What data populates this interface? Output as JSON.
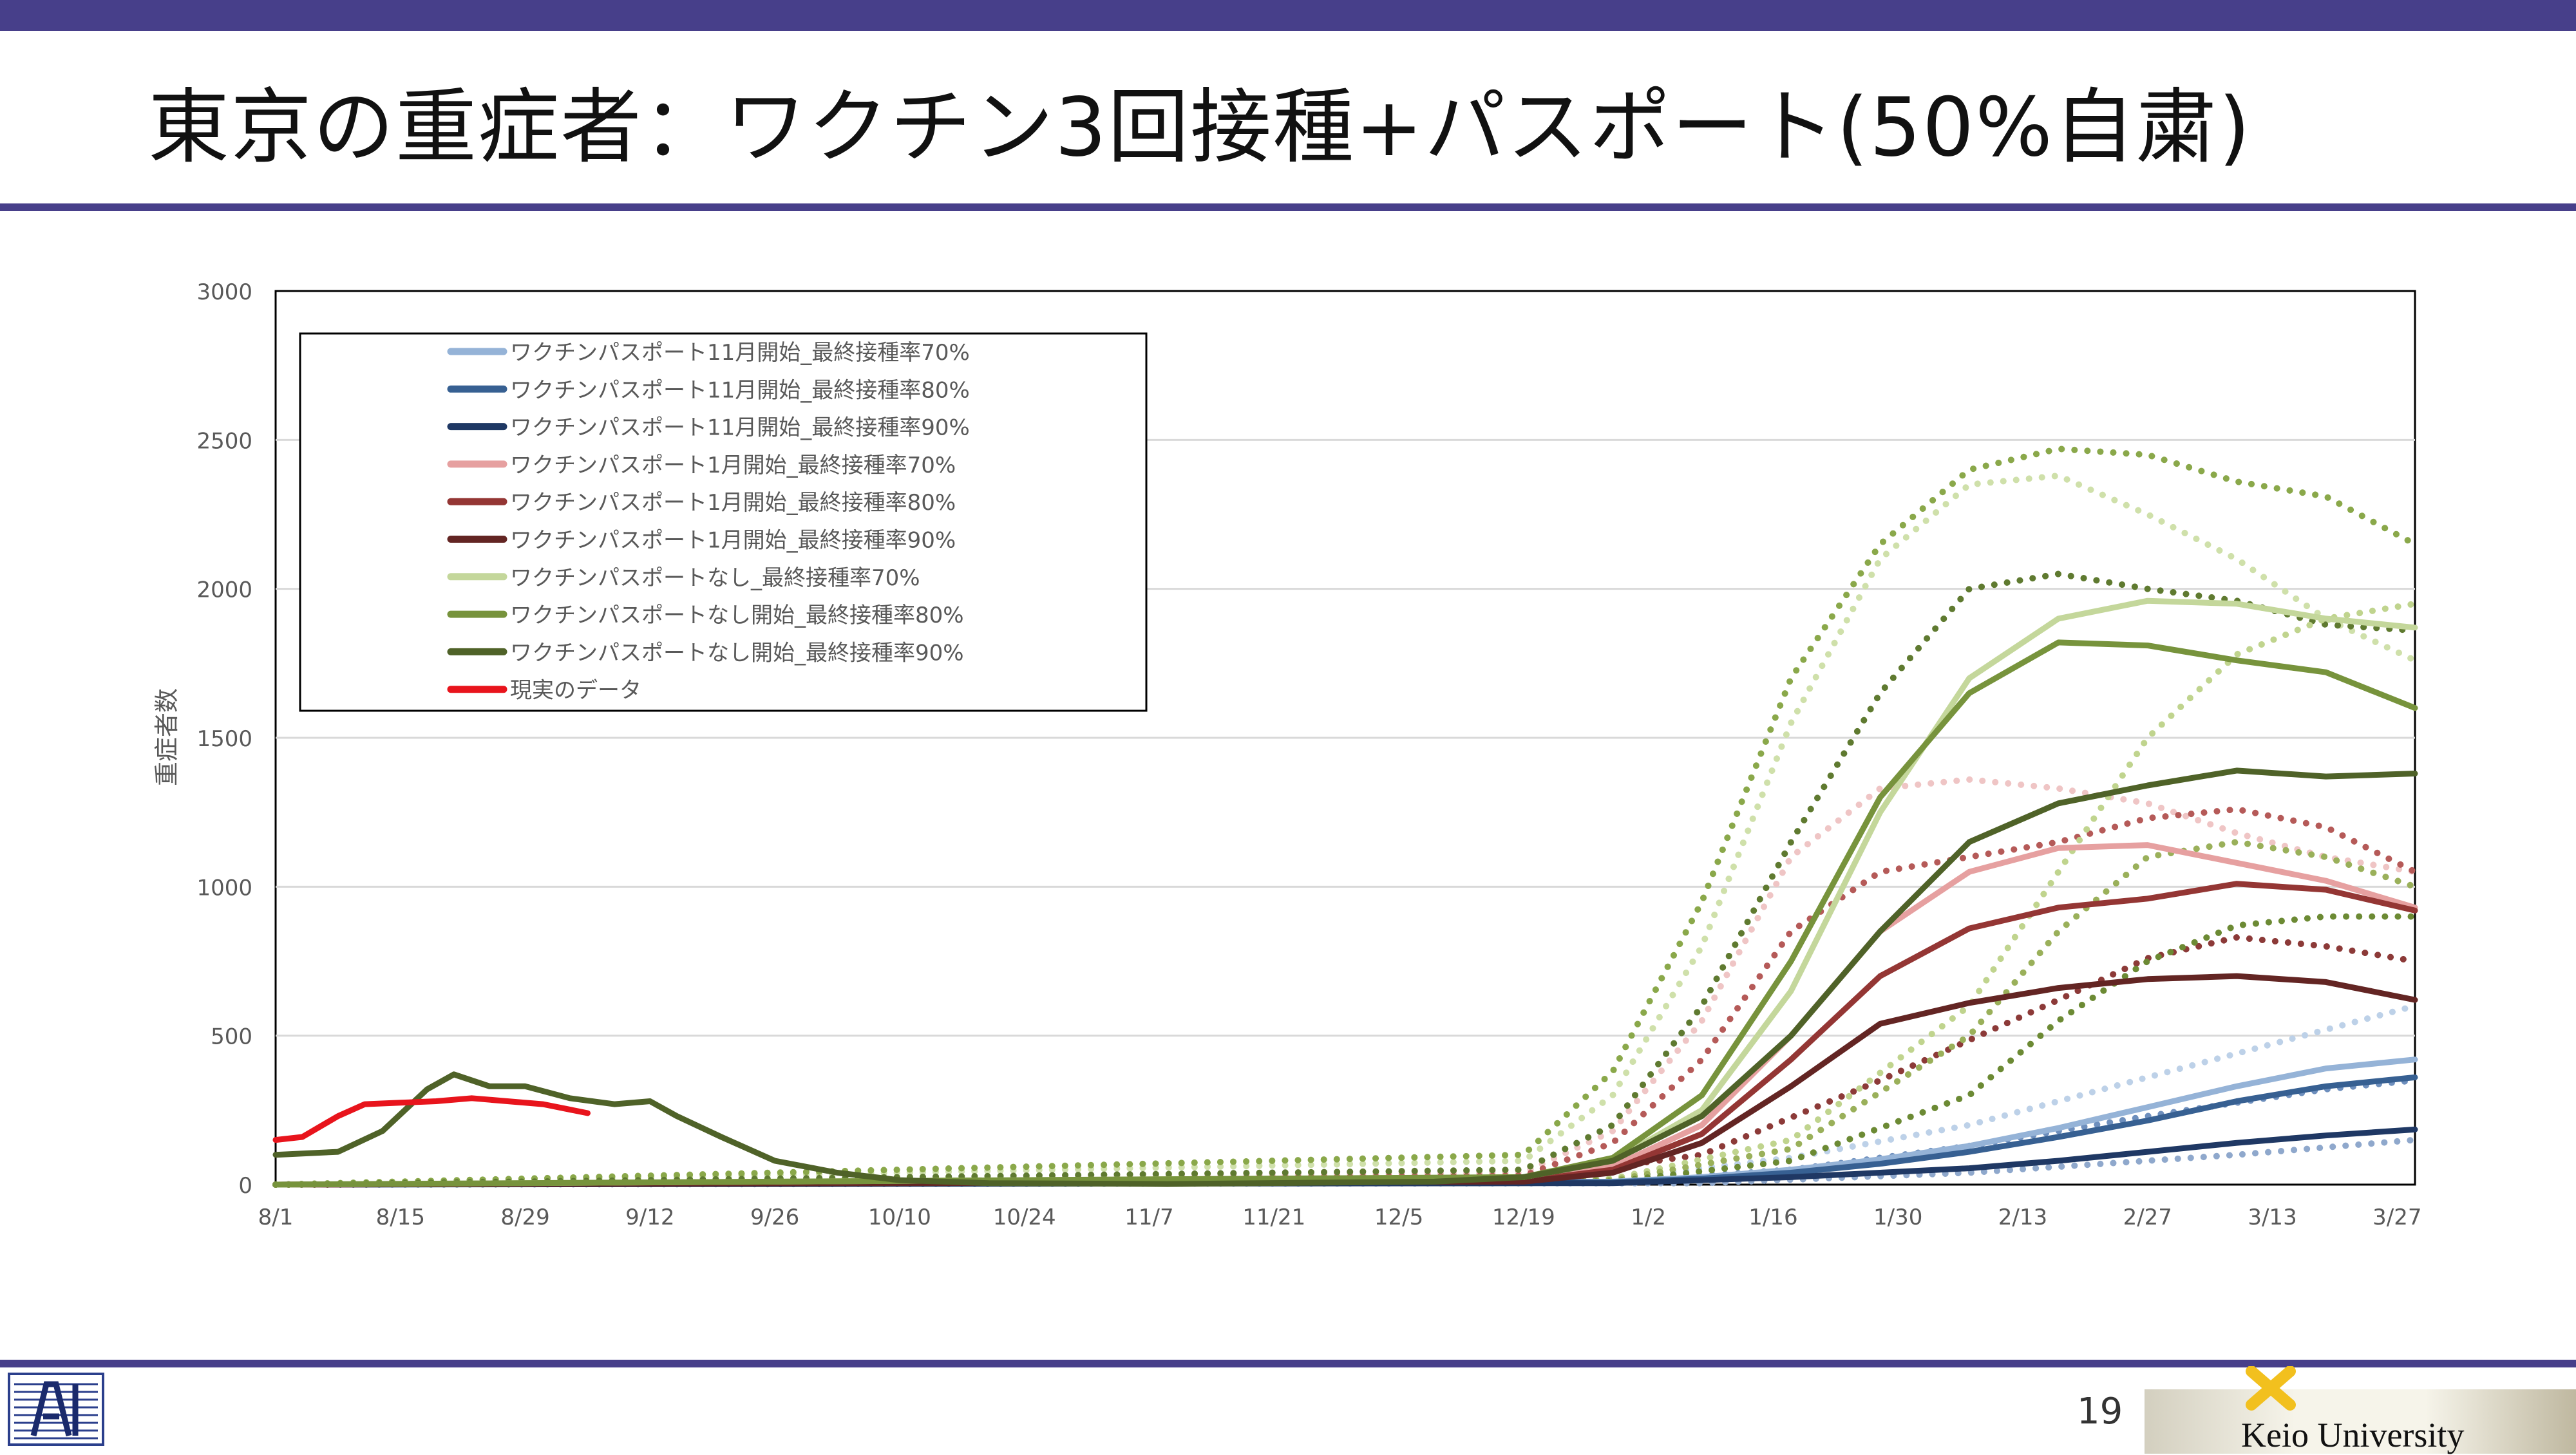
{
  "slide": {
    "title": "東京の重症者：ワクチン3回接種+パスポート(50%自粛)",
    "page_number": "19",
    "university": "Keio University"
  },
  "chart_data": {
    "type": "line",
    "ylabel": "重症者数",
    "ylim": [
      0,
      3000
    ],
    "yticks": [
      0,
      500,
      1000,
      1500,
      2000,
      2500,
      3000
    ],
    "x_ticks": [
      "8/1",
      "8/15",
      "8/29",
      "9/12",
      "9/26",
      "10/10",
      "10/24",
      "11/7",
      "11/21",
      "12/5",
      "12/19",
      "1/2",
      "1/16",
      "1/30",
      "2/13",
      "2/27",
      "3/13",
      "3/27"
    ],
    "x_tick_days": [
      0,
      14,
      28,
      42,
      56,
      70,
      84,
      98,
      112,
      126,
      140,
      154,
      168,
      182,
      196,
      210,
      224,
      238
    ],
    "x_range_days": [
      0,
      240
    ],
    "grid": "horizontal",
    "legend_position": "top-left",
    "series": [
      {
        "name": "ワクチンパスポート11月開始_最終接種率70%",
        "color": "#95b3d7",
        "style": "solid",
        "x": [
          0,
          150,
          160,
          170,
          180,
          190,
          200,
          210,
          220,
          230,
          240
        ],
        "y": [
          0,
          10,
          25,
          50,
          85,
          130,
          190,
          260,
          330,
          390,
          420
        ]
      },
      {
        "name": "ワクチンパスポート11月開始_最終接種率80%",
        "color": "#376092",
        "style": "solid",
        "x": [
          0,
          150,
          160,
          170,
          180,
          190,
          200,
          210,
          220,
          230,
          240
        ],
        "y": [
          0,
          8,
          20,
          40,
          70,
          110,
          160,
          215,
          280,
          330,
          360
        ]
      },
      {
        "name": "ワクチンパスポート11月開始_最終接種率90%",
        "color": "#1f3864",
        "style": "solid",
        "x": [
          0,
          150,
          170,
          190,
          200,
          210,
          220,
          230,
          240
        ],
        "y": [
          0,
          5,
          25,
          55,
          80,
          110,
          140,
          165,
          185
        ]
      },
      {
        "name": "ワクチンパスポート1月開始_最終接種率70%",
        "color": "#e6a0a0",
        "style": "solid",
        "x": [
          0,
          140,
          150,
          160,
          170,
          180,
          190,
          200,
          210,
          220,
          230,
          240
        ],
        "y": [
          0,
          15,
          60,
          200,
          500,
          850,
          1050,
          1130,
          1140,
          1080,
          1020,
          930
        ]
      },
      {
        "name": "ワクチンパスポート1月開始_最終接種率80%",
        "color": "#943634",
        "style": "solid",
        "x": [
          0,
          140,
          150,
          160,
          170,
          180,
          190,
          200,
          210,
          220,
          230,
          240
        ],
        "y": [
          0,
          12,
          50,
          170,
          420,
          700,
          860,
          930,
          960,
          1010,
          990,
          920
        ]
      },
      {
        "name": "ワクチンパスポート1月開始_最終接種率90%",
        "color": "#632523",
        "style": "solid",
        "x": [
          0,
          140,
          150,
          160,
          170,
          180,
          190,
          200,
          210,
          220,
          230,
          240
        ],
        "y": [
          0,
          10,
          40,
          140,
          330,
          540,
          610,
          660,
          690,
          700,
          680,
          620
        ]
      },
      {
        "name": "ワクチンパスポートなし_最終接種率70%",
        "color": "#c4d79b",
        "style": "solid",
        "x": [
          0,
          140,
          150,
          160,
          170,
          180,
          190,
          200,
          210,
          220,
          230,
          240
        ],
        "y": [
          0,
          25,
          80,
          250,
          650,
          1250,
          1700,
          1900,
          1960,
          1950,
          1900,
          1870
        ]
      },
      {
        "name": "ワクチンパスポートなし開始_最終接種率80%",
        "color": "#77933c",
        "style": "solid",
        "x": [
          0,
          140,
          150,
          160,
          170,
          180,
          190,
          200,
          210,
          220,
          230,
          240
        ],
        "y": [
          0,
          25,
          90,
          300,
          750,
          1300,
          1650,
          1820,
          1810,
          1760,
          1720,
          1600
        ]
      },
      {
        "name": "ワクチンパスポートなし開始_最終接種率90%",
        "color": "#4f6228",
        "style": "solid",
        "x": [
          0,
          7,
          12,
          17,
          20,
          24,
          28,
          33,
          38,
          42,
          45,
          50,
          56,
          63,
          70,
          80,
          100,
          130,
          140,
          150,
          160,
          170,
          180,
          190,
          200,
          210,
          220,
          230,
          240
        ],
        "y": [
          100,
          110,
          180,
          320,
          370,
          330,
          330,
          290,
          270,
          280,
          230,
          160,
          80,
          40,
          15,
          5,
          2,
          10,
          25,
          80,
          230,
          500,
          850,
          1150,
          1280,
          1340,
          1390,
          1370,
          1380
        ]
      },
      {
        "name": "現実のデータ",
        "color": "#e8141c",
        "style": "solid",
        "x": [
          0,
          3,
          7,
          10,
          14,
          18,
          22,
          26,
          30,
          35
        ],
        "y": [
          150,
          160,
          230,
          270,
          275,
          280,
          290,
          280,
          270,
          240
        ]
      },
      {
        "name": "",
        "color": "#bdd1e8",
        "style": "dotted",
        "x": [
          0,
          150,
          170,
          190,
          210,
          230,
          240
        ],
        "y": [
          0,
          20,
          90,
          200,
          360,
          520,
          600
        ]
      },
      {
        "name": "",
        "color": "#6e8fbd",
        "style": "dotted",
        "x": [
          0,
          150,
          170,
          190,
          210,
          230,
          240
        ],
        "y": [
          0,
          10,
          50,
          130,
          230,
          320,
          350
        ]
      },
      {
        "name": "",
        "color": "#8fa8cc",
        "style": "dotted",
        "x": [
          0,
          160,
          190,
          220,
          240
        ],
        "y": [
          0,
          5,
          40,
          100,
          150
        ]
      },
      {
        "name": "",
        "color": "#efc5c5",
        "style": "dotted",
        "x": [
          0,
          140,
          150,
          160,
          170,
          180,
          190,
          200,
          210,
          220,
          230,
          240
        ],
        "y": [
          0,
          40,
          180,
          550,
          1100,
          1330,
          1360,
          1330,
          1280,
          1180,
          1100,
          1050
        ]
      },
      {
        "name": "",
        "color": "#b55a58",
        "style": "dotted",
        "x": [
          0,
          140,
          150,
          160,
          170,
          180,
          190,
          200,
          210,
          220,
          230,
          240
        ],
        "y": [
          0,
          30,
          140,
          420,
          850,
          1050,
          1100,
          1150,
          1230,
          1260,
          1200,
          1050
        ]
      },
      {
        "name": "",
        "color": "#8c3a38",
        "style": "dotted",
        "x": [
          0,
          140,
          160,
          180,
          200,
          210,
          220,
          230,
          240
        ],
        "y": [
          0,
          20,
          100,
          350,
          620,
          760,
          830,
          800,
          750
        ]
      },
      {
        "name": "",
        "color": "#cfe0aa",
        "style": "dotted",
        "x": [
          0,
          140,
          150,
          160,
          170,
          180,
          190,
          200,
          210,
          220,
          230,
          240
        ],
        "y": [
          0,
          80,
          300,
          800,
          1550,
          2100,
          2350,
          2380,
          2250,
          2100,
          1900,
          1760
        ]
      },
      {
        "name": "",
        "color": "#8aa84a",
        "style": "dotted",
        "x": [
          0,
          140,
          150,
          160,
          170,
          180,
          190,
          200,
          210,
          220,
          230,
          240
        ],
        "y": [
          0,
          100,
          380,
          950,
          1700,
          2150,
          2400,
          2470,
          2450,
          2360,
          2310,
          2150
        ]
      },
      {
        "name": "",
        "color": "#5f7a30",
        "style": "dotted",
        "x": [
          0,
          140,
          150,
          160,
          170,
          180,
          190,
          200,
          210,
          220,
          230,
          240
        ],
        "y": [
          0,
          50,
          200,
          600,
          1150,
          1650,
          2000,
          2050,
          2000,
          1960,
          1880,
          1860
        ]
      },
      {
        "name": "",
        "color": "#c0d48e",
        "style": "dotted",
        "x": [
          0,
          150,
          170,
          190,
          200,
          210,
          220,
          230,
          240
        ],
        "y": [
          0,
          20,
          150,
          600,
          1050,
          1500,
          1780,
          1900,
          1950
        ]
      },
      {
        "name": "",
        "color": "#9ab05a",
        "style": "dotted",
        "x": [
          0,
          150,
          170,
          190,
          200,
          210,
          220,
          230,
          240
        ],
        "y": [
          0,
          15,
          120,
          500,
          850,
          1100,
          1150,
          1100,
          1000
        ]
      },
      {
        "name": "",
        "color": "#6c8a34",
        "style": "dotted",
        "x": [
          0,
          150,
          170,
          190,
          200,
          210,
          220,
          230,
          240
        ],
        "y": [
          0,
          10,
          80,
          300,
          550,
          750,
          870,
          900,
          900
        ]
      }
    ]
  }
}
